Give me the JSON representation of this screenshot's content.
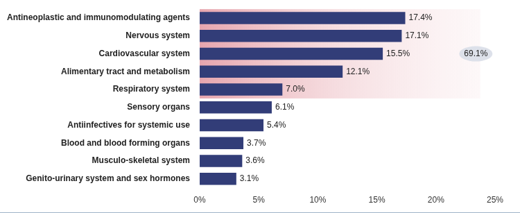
{
  "chart_data": {
    "type": "bar",
    "orientation": "horizontal",
    "categories": [
      "Antineoplastic and immunomodulating agents",
      "Nervous system",
      "Cardiovascular system",
      "Alimentary tract and metabolism",
      "Respiratory system",
      "Sensory organs",
      "Antiinfectives for systemic use",
      "Blood and blood forming organs",
      "Musculo-skeletal system",
      "Genito-urinary system and sex hormones"
    ],
    "values": [
      17.4,
      17.1,
      15.5,
      12.1,
      7.0,
      6.1,
      5.4,
      3.7,
      3.6,
      3.1
    ],
    "value_labels": [
      "17.4%",
      "17.1%",
      "15.5%",
      "12.1%",
      "7.0%",
      "6.1%",
      "5.4%",
      "3.7%",
      "3.6%",
      "3.1%"
    ],
    "data_labels": true,
    "color": "#323d78",
    "xlim": [
      0,
      25
    ],
    "xticks": [
      {
        "value": 0,
        "label": "0%"
      },
      {
        "value": 5,
        "label": "5%"
      },
      {
        "value": 10,
        "label": "10%"
      },
      {
        "value": 15,
        "label": "15%"
      },
      {
        "value": 20,
        "label": "20%"
      },
      {
        "value": 25,
        "label": "25%"
      }
    ],
    "grid": false,
    "annotations": [
      {
        "value": 69.1,
        "label": "69.1%"
      }
    ]
  }
}
